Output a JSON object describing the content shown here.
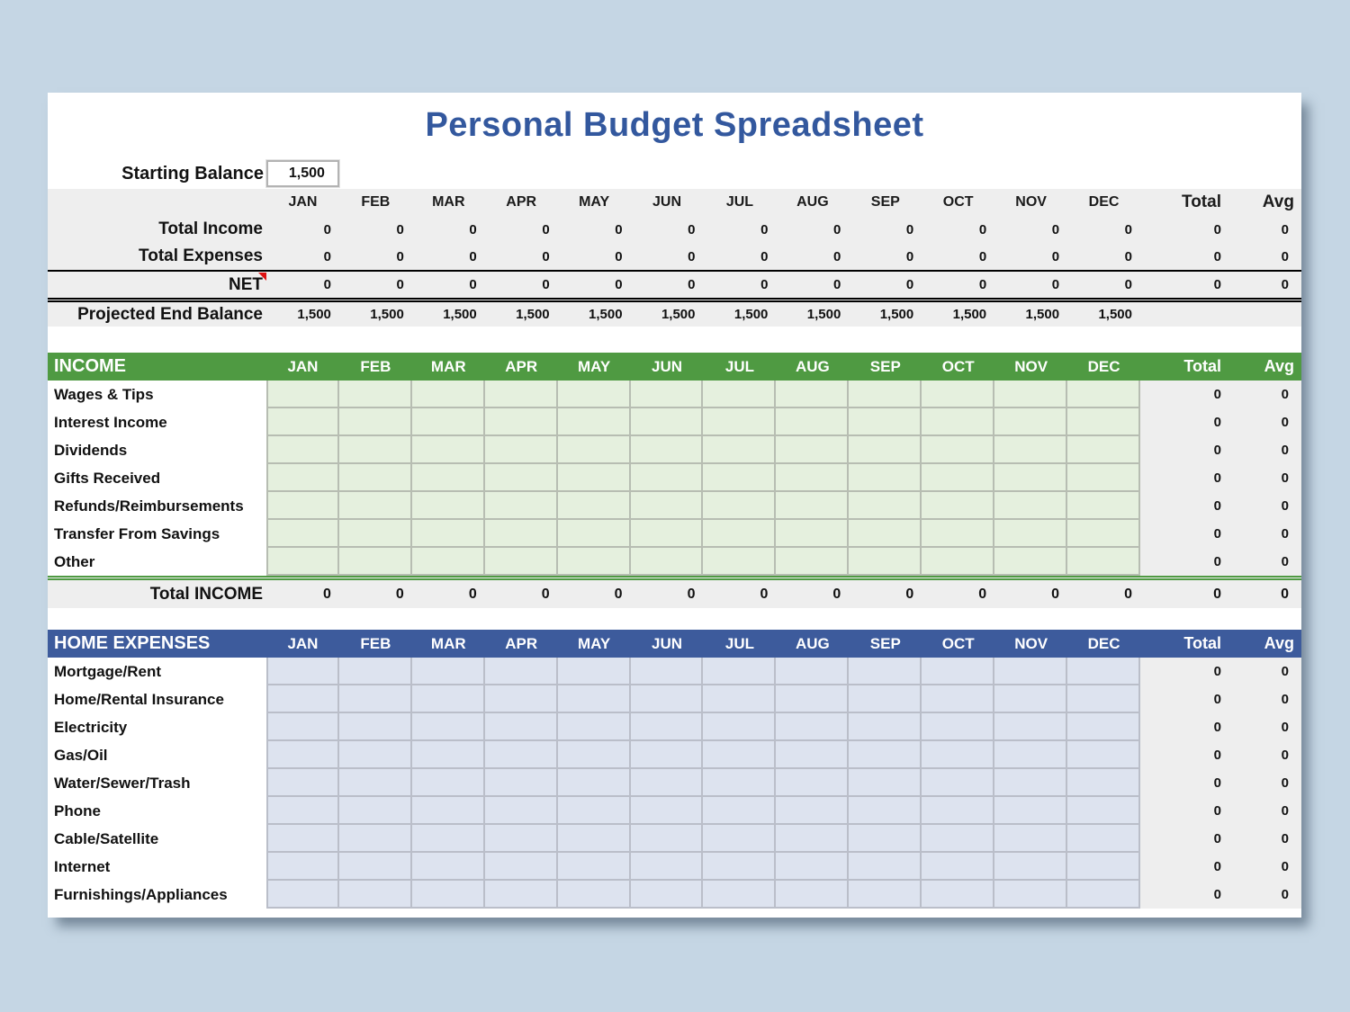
{
  "title": "Personal Budget Spreadsheet",
  "colors": {
    "title_blue": "#33589e",
    "accent_green": "#4f9a42",
    "accent_blue": "#3d5b9c",
    "page_background": "#c5d6e4",
    "summary_background": "#eeeeee",
    "income_cell": "#e5f0de",
    "expense_cell": "#dde3ef",
    "comment_marker_red": "#dd1111"
  },
  "months": [
    "JAN",
    "FEB",
    "MAR",
    "APR",
    "MAY",
    "JUN",
    "JUL",
    "AUG",
    "SEP",
    "OCT",
    "NOV",
    "DEC"
  ],
  "columns": {
    "total_label": "Total",
    "avg_label": "Avg"
  },
  "starting_balance": {
    "label": "Starting Balance",
    "value": "1,500"
  },
  "summary": {
    "rows": [
      {
        "label": "Total Income",
        "values": [
          "0",
          "0",
          "0",
          "0",
          "0",
          "0",
          "0",
          "0",
          "0",
          "0",
          "0",
          "0"
        ],
        "total": "0",
        "avg": "0",
        "is_net": false,
        "comment": false
      },
      {
        "label": "Total Expenses",
        "values": [
          "0",
          "0",
          "0",
          "0",
          "0",
          "0",
          "0",
          "0",
          "0",
          "0",
          "0",
          "0"
        ],
        "total": "0",
        "avg": "0",
        "is_net": false,
        "comment": false
      },
      {
        "label": "NET",
        "values": [
          "0",
          "0",
          "0",
          "0",
          "0",
          "0",
          "0",
          "0",
          "0",
          "0",
          "0",
          "0"
        ],
        "total": "0",
        "avg": "0",
        "is_net": true,
        "comment": true
      }
    ],
    "projected": {
      "label": "Projected End Balance",
      "values": [
        "1,500",
        "1,500",
        "1,500",
        "1,500",
        "1,500",
        "1,500",
        "1,500",
        "1,500",
        "1,500",
        "1,500",
        "1,500",
        "1,500"
      ],
      "total": "",
      "avg": ""
    }
  },
  "income": {
    "title": "INCOME",
    "items": [
      {
        "label": "Wages & Tips",
        "total": "0",
        "avg": "0"
      },
      {
        "label": "Interest Income",
        "total": "0",
        "avg": "0"
      },
      {
        "label": "Dividends",
        "total": "0",
        "avg": "0"
      },
      {
        "label": "Gifts Received",
        "total": "0",
        "avg": "0"
      },
      {
        "label": "Refunds/Reimbursements",
        "total": "0",
        "avg": "0"
      },
      {
        "label": "Transfer From Savings",
        "total": "0",
        "avg": "0"
      },
      {
        "label": "Other",
        "total": "0",
        "avg": "0"
      }
    ],
    "total_row": {
      "label": "Total INCOME",
      "values": [
        "0",
        "0",
        "0",
        "0",
        "0",
        "0",
        "0",
        "0",
        "0",
        "0",
        "0",
        "0"
      ],
      "total": "0",
      "avg": "0"
    }
  },
  "home_expenses": {
    "title": "HOME EXPENSES",
    "items": [
      {
        "label": "Mortgage/Rent",
        "total": "0",
        "avg": "0"
      },
      {
        "label": "Home/Rental Insurance",
        "total": "0",
        "avg": "0"
      },
      {
        "label": "Electricity",
        "total": "0",
        "avg": "0"
      },
      {
        "label": "Gas/Oil",
        "total": "0",
        "avg": "0"
      },
      {
        "label": "Water/Sewer/Trash",
        "total": "0",
        "avg": "0"
      },
      {
        "label": "Phone",
        "total": "0",
        "avg": "0"
      },
      {
        "label": "Cable/Satellite",
        "total": "0",
        "avg": "0"
      },
      {
        "label": "Internet",
        "total": "0",
        "avg": "0"
      },
      {
        "label": "Furnishings/Appliances",
        "total": "0",
        "avg": "0"
      }
    ]
  }
}
